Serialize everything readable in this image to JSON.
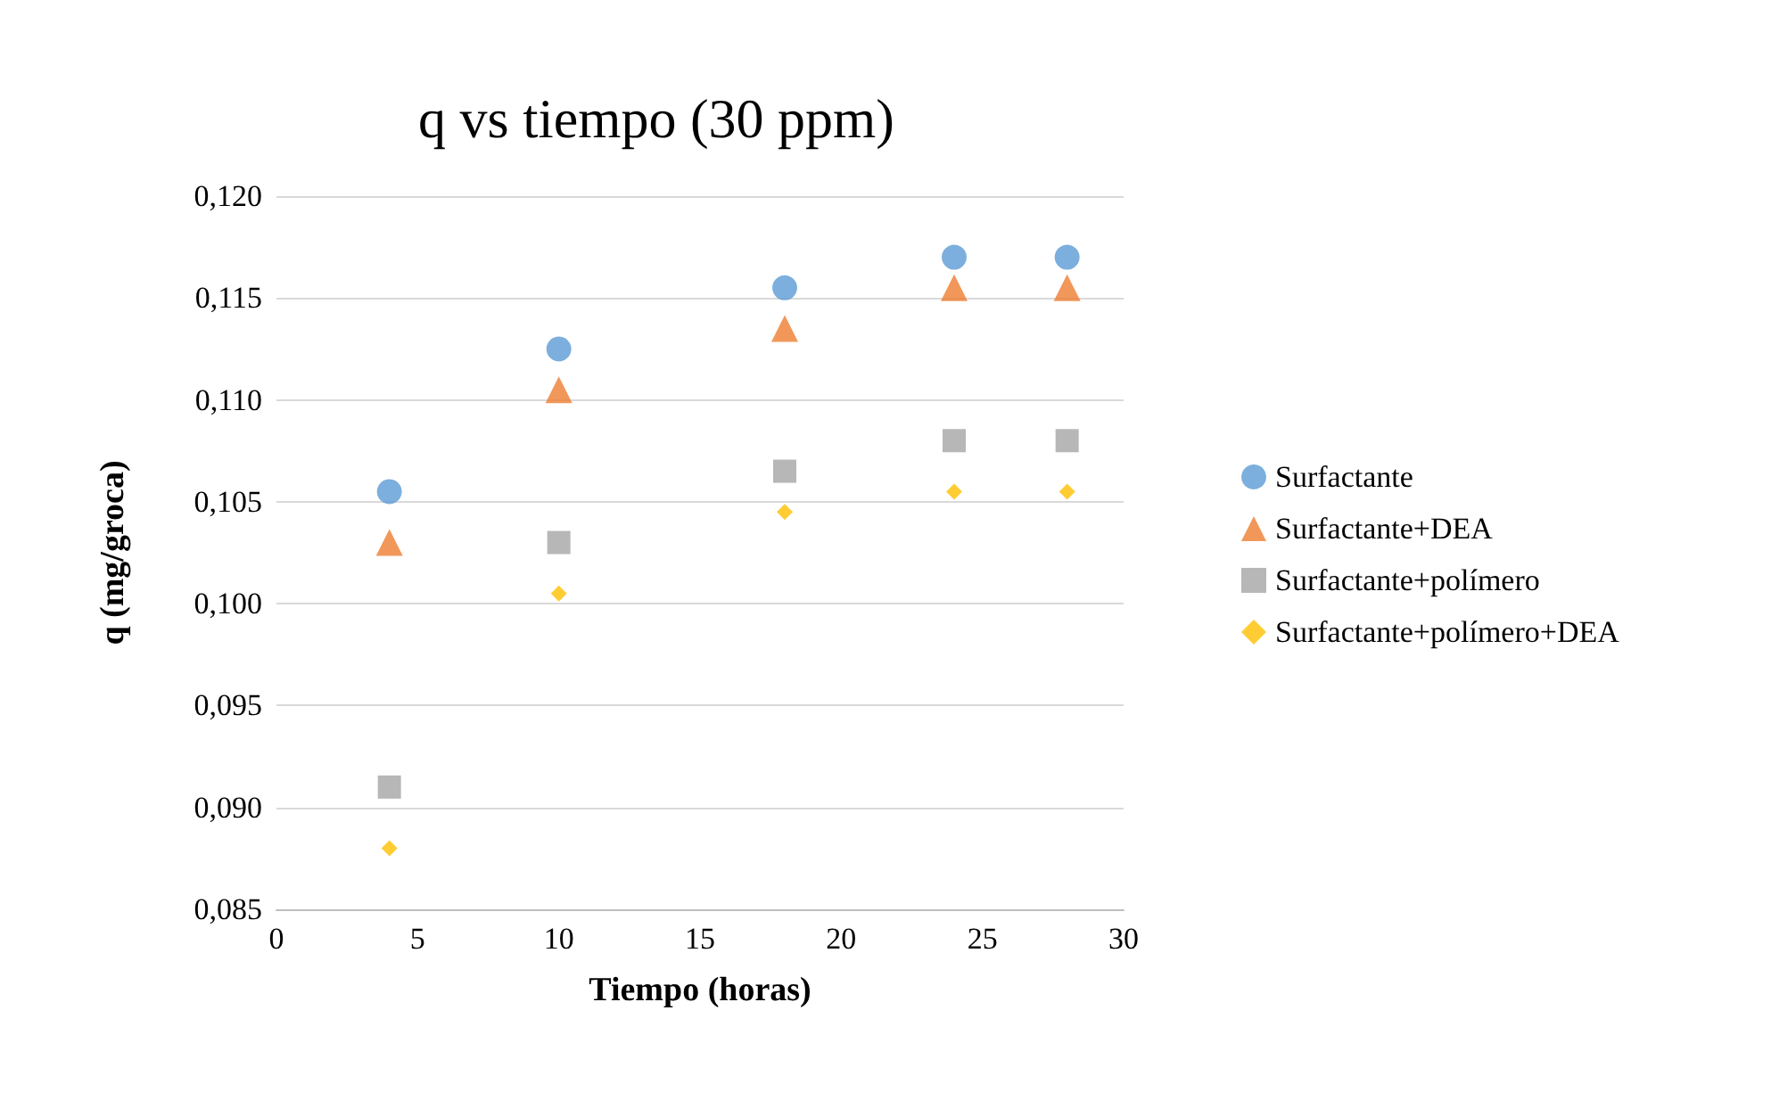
{
  "chart_data": {
    "type": "scatter",
    "title": "q vs tiempo (30 ppm)",
    "xlabel": "Tiempo (horas)",
    "ylabel": "q (mg/groca)",
    "x": [
      4,
      10,
      18,
      24,
      28
    ],
    "series": [
      {
        "name": "Surfactante",
        "color": "#5b9bd5",
        "marker": "circle",
        "values": [
          0.1055,
          0.1125,
          0.1155,
          0.117,
          0.117
        ]
      },
      {
        "name": "Surfactante+DEA",
        "color": "#ed7d31",
        "marker": "triangle",
        "values": [
          0.103,
          0.1105,
          0.1135,
          0.1155,
          0.1155
        ]
      },
      {
        "name": "Surfactante+polímero",
        "color": "#a5a5a5",
        "marker": "square",
        "values": [
          0.091,
          0.103,
          0.1065,
          0.108,
          0.108
        ]
      },
      {
        "name": "Surfactante+polímero+DEA",
        "color": "#ffc000",
        "marker": "diamond",
        "values": [
          0.088,
          0.1005,
          0.1045,
          0.1055,
          0.1055
        ]
      }
    ],
    "xlim": [
      0,
      30
    ],
    "xticks": [
      0,
      5,
      10,
      15,
      20,
      25,
      30
    ],
    "ylim": [
      0.085,
      0.12
    ],
    "yticks": [
      {
        "value": 0.085,
        "label": "0,085"
      },
      {
        "value": 0.09,
        "label": "0,090"
      },
      {
        "value": 0.095,
        "label": "0,095"
      },
      {
        "value": 0.1,
        "label": "0,100"
      },
      {
        "value": 0.105,
        "label": "0,105"
      },
      {
        "value": 0.11,
        "label": "0,110"
      },
      {
        "value": 0.115,
        "label": "0,115"
      },
      {
        "value": 0.12,
        "label": "0,120"
      }
    ],
    "grid": "y",
    "legend": "right"
  }
}
